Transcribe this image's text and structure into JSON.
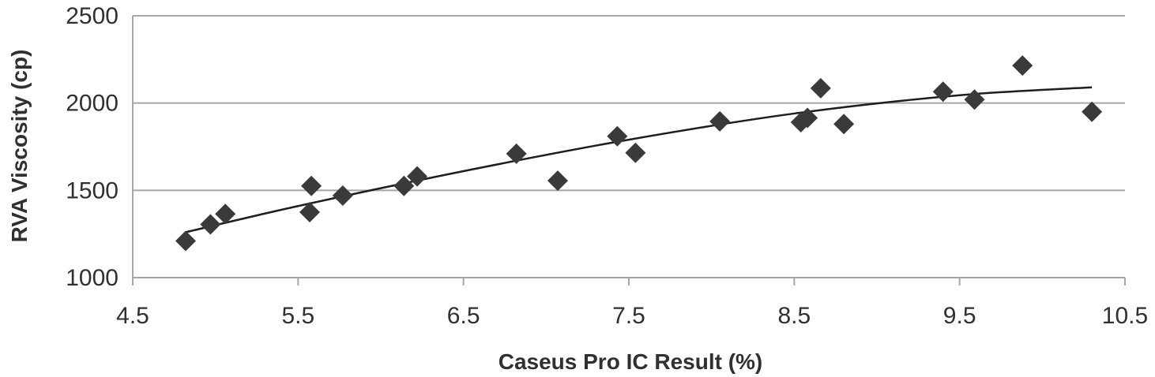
{
  "chart_data": {
    "type": "scatter",
    "title": "",
    "xlabel": "Caseus Pro IC Result (%)",
    "ylabel": "RVA Viscosity (cp)",
    "xlim": [
      4.5,
      10.5
    ],
    "ylim": [
      1000,
      2500
    ],
    "xticks": [
      "4.5",
      "5.5",
      "6.5",
      "7.5",
      "8.5",
      "9.5",
      "10.5"
    ],
    "yticks": [
      "1000",
      "1500",
      "2000",
      "2500"
    ],
    "xtick_values": [
      4.5,
      5.5,
      6.5,
      7.5,
      8.5,
      9.5,
      10.5
    ],
    "ytick_values": [
      1000,
      1500,
      2000,
      2500
    ],
    "grid": "horizontal",
    "marker": "diamond",
    "series": [
      {
        "name": "RVA Viscosity",
        "x": [
          4.82,
          4.97,
          5.06,
          5.57,
          5.58,
          5.77,
          6.14,
          6.22,
          6.82,
          7.07,
          7.43,
          7.54,
          8.05,
          8.54,
          8.58,
          8.66,
          8.8,
          9.4,
          9.59,
          9.88,
          10.3
        ],
        "y": [
          1210,
          1305,
          1365,
          1375,
          1525,
          1470,
          1525,
          1580,
          1710,
          1555,
          1810,
          1715,
          1895,
          1890,
          1915,
          2085,
          1880,
          2065,
          2020,
          2215,
          1950
        ]
      }
    ],
    "trendline": {
      "type": "polynomial",
      "x": [
        4.82,
        5.5,
        6.5,
        7.5,
        8.5,
        9.5,
        10.3
      ],
      "y": [
        1260,
        1410,
        1610,
        1790,
        1940,
        2045,
        2090
      ]
    },
    "colors": {
      "marker": "#3a3a3a",
      "trendline": "#1e1e1e",
      "grid": "#a6a6a6",
      "text": "#303030"
    }
  }
}
